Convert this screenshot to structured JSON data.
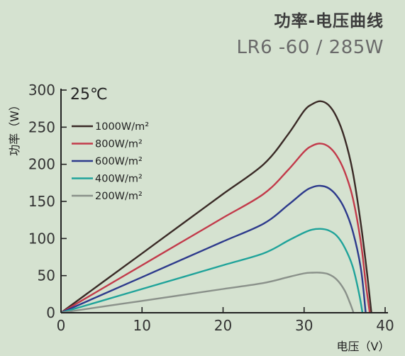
{
  "chart_data": {
    "type": "line",
    "title": "功率-电压曲线",
    "subtitle": "LR6 -60 / 285W",
    "annotation": "25℃",
    "xlabel": "电压（V）",
    "ylabel": "功率（W）",
    "xlim": [
      0,
      40
    ],
    "ylim": [
      0,
      300
    ],
    "xticks": [
      0,
      10,
      20,
      30,
      40
    ],
    "yticks": [
      0,
      50,
      100,
      150,
      200,
      250,
      300
    ],
    "grid": false,
    "legend_position": "top-left",
    "series": [
      {
        "name": "1000W/m²",
        "color": "#3a2a26",
        "points": [
          [
            0,
            0
          ],
          [
            5,
            40
          ],
          [
            10,
            80
          ],
          [
            15,
            120
          ],
          [
            20,
            160
          ],
          [
            25,
            200
          ],
          [
            28,
            240
          ],
          [
            30,
            272
          ],
          [
            31,
            281
          ],
          [
            32,
            285
          ],
          [
            33,
            280
          ],
          [
            34,
            264
          ],
          [
            35,
            235
          ],
          [
            36,
            190
          ],
          [
            37,
            120
          ],
          [
            37.8,
            50
          ],
          [
            38.3,
            0
          ]
        ]
      },
      {
        "name": "800W/m²",
        "color": "#c23a4a",
        "points": [
          [
            0,
            0
          ],
          [
            5,
            32
          ],
          [
            10,
            64
          ],
          [
            15,
            96
          ],
          [
            20,
            128
          ],
          [
            25,
            160
          ],
          [
            28,
            192
          ],
          [
            30,
            217
          ],
          [
            31,
            225
          ],
          [
            32,
            228
          ],
          [
            33,
            224
          ],
          [
            34,
            212
          ],
          [
            35,
            190
          ],
          [
            36,
            155
          ],
          [
            37,
            95
          ],
          [
            37.6,
            40
          ],
          [
            38.1,
            0
          ]
        ]
      },
      {
        "name": "600W/m²",
        "color": "#2d3a8c",
        "points": [
          [
            0,
            0
          ],
          [
            5,
            24
          ],
          [
            10,
            48
          ],
          [
            15,
            72
          ],
          [
            20,
            96
          ],
          [
            25,
            120
          ],
          [
            28,
            145
          ],
          [
            30,
            163
          ],
          [
            31,
            169
          ],
          [
            32,
            171
          ],
          [
            33,
            168
          ],
          [
            34,
            158
          ],
          [
            35,
            140
          ],
          [
            36,
            110
          ],
          [
            37,
            60
          ],
          [
            37.6,
            0
          ]
        ]
      },
      {
        "name": "400W/m²",
        "color": "#1fa39a",
        "points": [
          [
            0,
            0
          ],
          [
            5,
            16
          ],
          [
            10,
            32
          ],
          [
            15,
            48
          ],
          [
            20,
            64
          ],
          [
            25,
            80
          ],
          [
            28,
            97
          ],
          [
            30,
            108
          ],
          [
            31,
            112
          ],
          [
            32,
            113
          ],
          [
            33,
            111
          ],
          [
            34,
            104
          ],
          [
            35,
            88
          ],
          [
            36,
            62
          ],
          [
            36.8,
            25
          ],
          [
            37.2,
            0
          ]
        ]
      },
      {
        "name": "200W/m²",
        "color": "#8a918a",
        "points": [
          [
            0,
            0
          ],
          [
            5,
            8
          ],
          [
            10,
            16
          ],
          [
            15,
            24
          ],
          [
            20,
            32
          ],
          [
            25,
            40
          ],
          [
            28,
            48
          ],
          [
            30,
            53
          ],
          [
            31,
            54
          ],
          [
            32,
            54
          ],
          [
            33,
            52
          ],
          [
            34,
            45
          ],
          [
            35,
            30
          ],
          [
            35.7,
            12
          ],
          [
            36.1,
            0
          ]
        ]
      }
    ]
  }
}
